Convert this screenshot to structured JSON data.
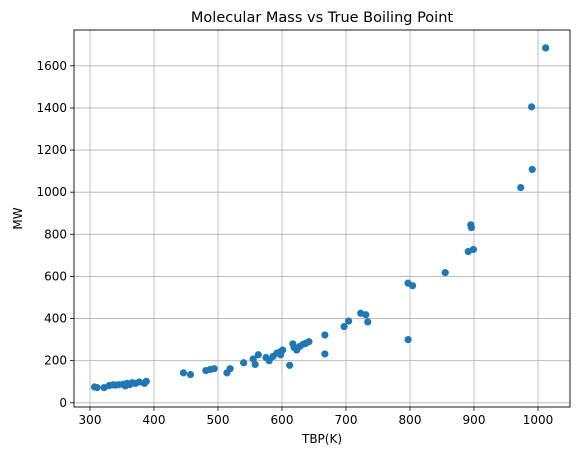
{
  "chart_data": {
    "type": "scatter",
    "title": "Molecular Mass vs True Boiling Point",
    "xlabel": "TBP(K)",
    "ylabel": "MW",
    "xlim": [
      275,
      1050
    ],
    "ylim": [
      -20,
      1770
    ],
    "xticks": [
      300,
      400,
      500,
      600,
      700,
      800,
      900,
      1000
    ],
    "yticks": [
      0,
      200,
      400,
      600,
      800,
      1000,
      1200,
      1400,
      1600
    ],
    "grid": true,
    "marker_color": "#1f77b4",
    "points": [
      {
        "x": 307,
        "y": 75
      },
      {
        "x": 311,
        "y": 72
      },
      {
        "x": 322,
        "y": 72
      },
      {
        "x": 330,
        "y": 82
      },
      {
        "x": 336,
        "y": 85
      },
      {
        "x": 340,
        "y": 84
      },
      {
        "x": 345,
        "y": 86
      },
      {
        "x": 352,
        "y": 88
      },
      {
        "x": 355,
        "y": 80
      },
      {
        "x": 358,
        "y": 92
      },
      {
        "x": 362,
        "y": 86
      },
      {
        "x": 366,
        "y": 95
      },
      {
        "x": 371,
        "y": 92
      },
      {
        "x": 377,
        "y": 99
      },
      {
        "x": 385,
        "y": 92
      },
      {
        "x": 388,
        "y": 102
      },
      {
        "x": 446,
        "y": 142
      },
      {
        "x": 457,
        "y": 134
      },
      {
        "x": 481,
        "y": 153
      },
      {
        "x": 488,
        "y": 158
      },
      {
        "x": 494,
        "y": 162
      },
      {
        "x": 514,
        "y": 142
      },
      {
        "x": 519,
        "y": 162
      },
      {
        "x": 540,
        "y": 190
      },
      {
        "x": 555,
        "y": 208
      },
      {
        "x": 558,
        "y": 182
      },
      {
        "x": 563,
        "y": 228
      },
      {
        "x": 575,
        "y": 215
      },
      {
        "x": 580,
        "y": 200
      },
      {
        "x": 586,
        "y": 220
      },
      {
        "x": 592,
        "y": 236
      },
      {
        "x": 597,
        "y": 242
      },
      {
        "x": 601,
        "y": 250
      },
      {
        "x": 598,
        "y": 228
      },
      {
        "x": 612,
        "y": 178
      },
      {
        "x": 617,
        "y": 280
      },
      {
        "x": 619,
        "y": 262
      },
      {
        "x": 623,
        "y": 250
      },
      {
        "x": 628,
        "y": 268
      },
      {
        "x": 633,
        "y": 278
      },
      {
        "x": 637,
        "y": 282
      },
      {
        "x": 642,
        "y": 290
      },
      {
        "x": 667,
        "y": 322
      },
      {
        "x": 667,
        "y": 232
      },
      {
        "x": 697,
        "y": 362
      },
      {
        "x": 704,
        "y": 388
      },
      {
        "x": 723,
        "y": 425
      },
      {
        "x": 731,
        "y": 418
      },
      {
        "x": 734,
        "y": 384
      },
      {
        "x": 797,
        "y": 568
      },
      {
        "x": 797,
        "y": 300
      },
      {
        "x": 804,
        "y": 556
      },
      {
        "x": 855,
        "y": 618
      },
      {
        "x": 891,
        "y": 718
      },
      {
        "x": 895,
        "y": 845
      },
      {
        "x": 896,
        "y": 832
      },
      {
        "x": 899,
        "y": 728
      },
      {
        "x": 973,
        "y": 1022
      },
      {
        "x": 990,
        "y": 1405
      },
      {
        "x": 991,
        "y": 1108
      },
      {
        "x": 1012,
        "y": 1685
      }
    ]
  }
}
